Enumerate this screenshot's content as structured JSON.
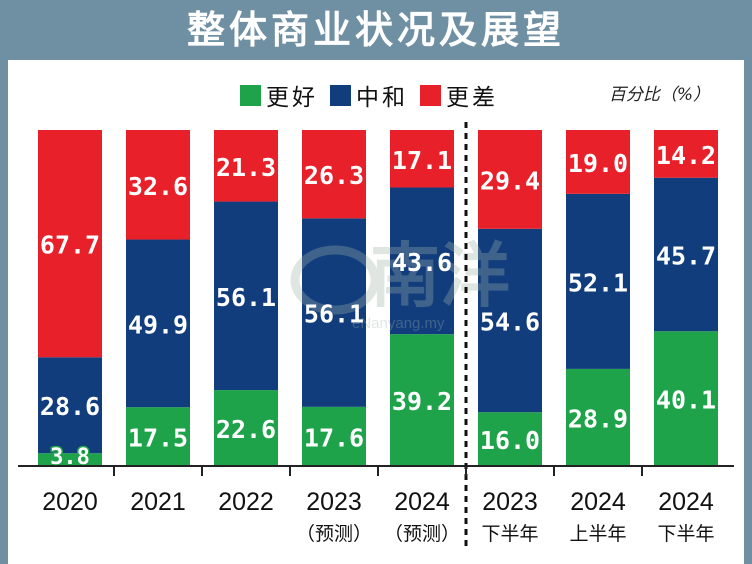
{
  "header": {
    "title": "整体商业状况及展望"
  },
  "legend": [
    {
      "label": "更好",
      "color": "#1fa34a"
    },
    {
      "label": "中和",
      "color": "#113d7d"
    },
    {
      "label": "更差",
      "color": "#e8202a"
    }
  ],
  "unit_label": "百分比（%）",
  "watermark": {
    "text": "南洋",
    "subtext": "eNanyang.my"
  },
  "chart_data": {
    "type": "bar",
    "stacked": true,
    "categories": [
      {
        "label": "2020",
        "sub": ""
      },
      {
        "label": "2021",
        "sub": ""
      },
      {
        "label": "2022",
        "sub": ""
      },
      {
        "label": "2023",
        "sub": "（预测）"
      },
      {
        "label": "2024",
        "sub": "（预测）"
      },
      {
        "label": "2023",
        "sub": "下半年"
      },
      {
        "label": "2024",
        "sub": "上半年"
      },
      {
        "label": "2024",
        "sub": "下半年"
      }
    ],
    "series": [
      {
        "name": "更好",
        "color": "#1fa34a",
        "values": [
          3.8,
          17.5,
          22.6,
          17.6,
          39.2,
          16.0,
          28.9,
          40.1
        ]
      },
      {
        "name": "中和",
        "color": "#113d7d",
        "values": [
          28.6,
          49.9,
          56.1,
          56.1,
          43.6,
          54.6,
          52.1,
          45.7
        ]
      },
      {
        "name": "更差",
        "color": "#e8202a",
        "values": [
          67.7,
          32.6,
          21.3,
          26.3,
          17.1,
          29.4,
          19.0,
          14.2
        ]
      }
    ],
    "value_labels": [
      [
        "3.8",
        "17.5",
        "22.6",
        "17.6",
        "39.2",
        "16.0",
        "28.9",
        "40.1"
      ],
      [
        "28.6",
        "49.9",
        "56.1",
        "56.1",
        "43.6",
        "54.6",
        "52.1",
        "45.7"
      ],
      [
        "67.7",
        "32.6",
        "21.3",
        "26.3",
        "17.1",
        "29.4",
        "19.0",
        "14.2"
      ]
    ],
    "ylim": [
      0,
      100
    ],
    "divider_after_index": 4
  }
}
